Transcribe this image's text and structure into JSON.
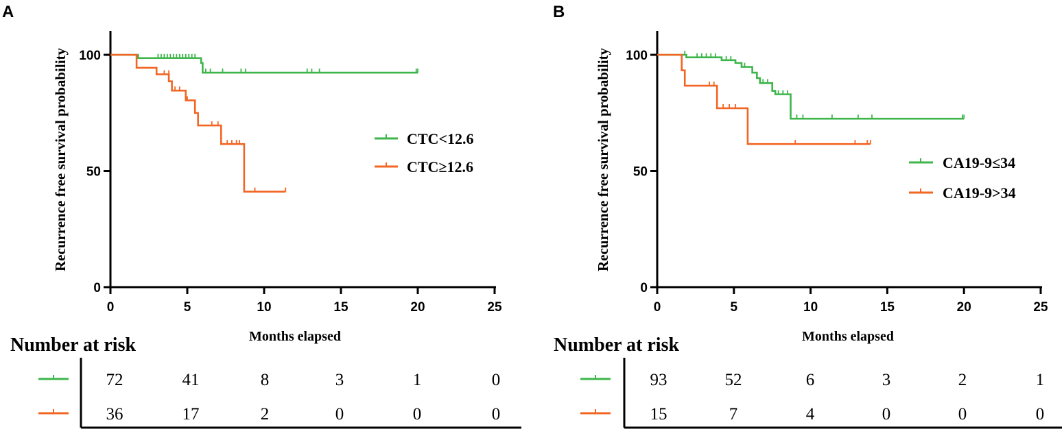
{
  "colors": {
    "green": "#3cb54a",
    "orange": "#f26522",
    "axis": "#000000"
  },
  "chart_data": [
    {
      "type": "line",
      "panel_label": "A",
      "xlabel": "Months elapsed",
      "ylabel": "Recurrence free survival probability",
      "xlim": [
        0,
        25
      ],
      "ylim": [
        0,
        100
      ],
      "x_ticks": [
        "0",
        "5",
        "10",
        "15",
        "20",
        "25"
      ],
      "y_ticks": [
        "0",
        "50",
        "100"
      ],
      "legend": [
        "CTC<12.6",
        "CTC≥12.6"
      ],
      "series": [
        {
          "name": "CTC<12.6",
          "color": "green",
          "steps": [
            [
              0,
              100
            ],
            [
              1.8,
              98.6
            ],
            [
              5.9,
              96.5
            ],
            [
              6.0,
              92.3
            ],
            [
              20,
              92.3
            ]
          ],
          "censor": [
            [
              3.1,
              98.6
            ],
            [
              3.3,
              98.6
            ],
            [
              3.5,
              98.6
            ],
            [
              3.7,
              98.6
            ],
            [
              3.9,
              98.6
            ],
            [
              4.1,
              98.6
            ],
            [
              4.3,
              98.6
            ],
            [
              4.5,
              98.6
            ],
            [
              4.7,
              98.6
            ],
            [
              4.9,
              98.6
            ],
            [
              5.1,
              98.6
            ],
            [
              5.3,
              98.6
            ],
            [
              5.5,
              98.6
            ],
            [
              6.2,
              92.3
            ],
            [
              6.5,
              92.3
            ],
            [
              7.3,
              92.3
            ],
            [
              8.5,
              92.3
            ],
            [
              8.8,
              92.3
            ],
            [
              12.8,
              92.3
            ],
            [
              13.1,
              92.3
            ],
            [
              13.6,
              92.3
            ],
            [
              19.9,
              92.3
            ],
            [
              20.0,
              92.3
            ]
          ]
        },
        {
          "name": "CTC≥12.6",
          "color": "orange",
          "steps": [
            [
              0,
              100
            ],
            [
              1.7,
              94.4
            ],
            [
              3.0,
              91.6
            ],
            [
              3.8,
              88.6
            ],
            [
              4.0,
              84.6
            ],
            [
              4.9,
              80.4
            ],
            [
              5.1,
              80.4
            ],
            [
              5.5,
              75.0
            ],
            [
              5.7,
              69.6
            ],
            [
              7.2,
              61.6
            ],
            [
              8.7,
              41.1
            ],
            [
              11.4,
              41.1
            ]
          ],
          "censor": [
            [
              3.5,
              91.6
            ],
            [
              3.8,
              91.6
            ],
            [
              4.2,
              84.6
            ],
            [
              4.5,
              84.6
            ],
            [
              5.0,
              80.4
            ],
            [
              6.6,
              69.6
            ],
            [
              7.0,
              69.6
            ],
            [
              7.6,
              61.6
            ],
            [
              7.9,
              61.6
            ],
            [
              8.2,
              61.6
            ],
            [
              8.4,
              61.6
            ],
            [
              9.4,
              41.1
            ],
            [
              11.4,
              41.1
            ]
          ]
        }
      ],
      "risk_table": {
        "title": "Number at risk",
        "rows": [
          {
            "series": "CTC<12.6",
            "values": [
              "72",
              "41",
              "8",
              "3",
              "1",
              "0"
            ]
          },
          {
            "series": "CTC≥12.6",
            "values": [
              "36",
              "17",
              "2",
              "0",
              "0",
              "0"
            ]
          }
        ]
      }
    },
    {
      "type": "line",
      "panel_label": "B",
      "xlabel": "Months elapsed",
      "ylabel": "Recurrence free survival probability",
      "xlim": [
        0,
        25
      ],
      "ylim": [
        0,
        100
      ],
      "x_ticks": [
        "0",
        "5",
        "10",
        "15",
        "20",
        "25"
      ],
      "y_ticks": [
        "0",
        "50",
        "100"
      ],
      "legend": [
        "CA19-9≤34",
        "CA19-9>34"
      ],
      "series": [
        {
          "name": "CA19-9≤34",
          "color": "green",
          "steps": [
            [
              0,
              100
            ],
            [
              1.9,
              98.9
            ],
            [
              4.2,
              97.7
            ],
            [
              5.1,
              96.5
            ],
            [
              5.5,
              94.8
            ],
            [
              6.2,
              92.3
            ],
            [
              6.5,
              90.0
            ],
            [
              6.7,
              87.8
            ],
            [
              7.2,
              87.8
            ],
            [
              7.5,
              84.5
            ],
            [
              7.7,
              83.0
            ],
            [
              8.7,
              72.5
            ],
            [
              20,
              72.5
            ]
          ],
          "censor": [
            [
              1.8,
              100
            ],
            [
              2.6,
              98.9
            ],
            [
              2.9,
              98.9
            ],
            [
              3.2,
              98.9
            ],
            [
              3.5,
              98.9
            ],
            [
              3.8,
              98.9
            ],
            [
              4.5,
              97.7
            ],
            [
              4.8,
              97.7
            ],
            [
              5.7,
              94.8
            ],
            [
              6.9,
              87.8
            ],
            [
              7.2,
              87.8
            ],
            [
              7.9,
              83.0
            ],
            [
              8.2,
              83.0
            ],
            [
              8.5,
              83.0
            ],
            [
              9.1,
              72.5
            ],
            [
              9.5,
              72.5
            ],
            [
              11.4,
              72.5
            ],
            [
              13.1,
              72.5
            ],
            [
              14.0,
              72.5
            ],
            [
              19.9,
              72.5
            ],
            [
              20.0,
              72.5
            ]
          ]
        },
        {
          "name": "CA19-9>34",
          "color": "orange",
          "steps": [
            [
              0,
              100
            ],
            [
              1.6,
              93.3
            ],
            [
              1.8,
              86.7
            ],
            [
              3.7,
              86.7
            ],
            [
              3.9,
              77.0
            ],
            [
              5.9,
              61.6
            ],
            [
              13.9,
              61.6
            ]
          ],
          "censor": [
            [
              1.6,
              97.0
            ],
            [
              3.4,
              86.7
            ],
            [
              3.7,
              86.7
            ],
            [
              4.3,
              77.0
            ],
            [
              4.7,
              77.0
            ],
            [
              5.1,
              77.0
            ],
            [
              9.0,
              61.6
            ],
            [
              12.9,
              61.6
            ],
            [
              13.7,
              61.6
            ],
            [
              13.9,
              61.6
            ]
          ]
        }
      ],
      "risk_table": {
        "title": "Number at risk",
        "rows": [
          {
            "series": "CA19-9≤34",
            "values": [
              "93",
              "52",
              "6",
              "3",
              "2",
              "1"
            ]
          },
          {
            "series": "CA19-9>34",
            "values": [
              "15",
              "7",
              "4",
              "0",
              "0",
              "0"
            ]
          }
        ]
      }
    }
  ]
}
